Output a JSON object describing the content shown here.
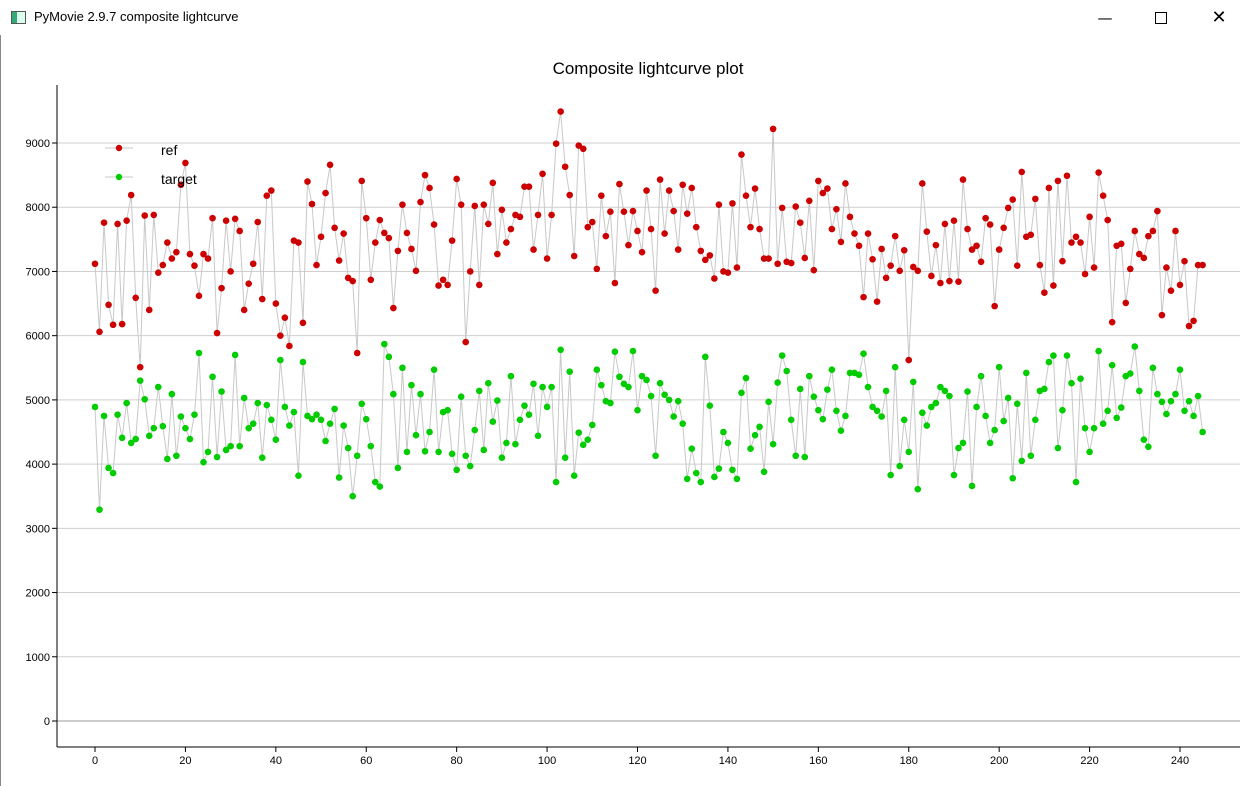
{
  "window": {
    "title": "PyMovie 2.9.7 composite lightcurve",
    "minimize_icon": "minimize-icon",
    "maximize_icon": "maximize-icon",
    "close_icon": "close-icon"
  },
  "chart_data": {
    "type": "line",
    "title": "Composite lightcurve plot",
    "xlabel": "",
    "ylabel": "",
    "xlim": [
      -8,
      252
    ],
    "ylim": [
      -380,
      9850
    ],
    "xticks": [
      0,
      20,
      40,
      60,
      80,
      100,
      120,
      140,
      160,
      180,
      200,
      220,
      240
    ],
    "yticks": [
      0,
      1000,
      2000,
      3000,
      4000,
      5000,
      6000,
      7000,
      8000,
      9000
    ],
    "grid": "horizontal",
    "legend": "top-left",
    "connector_color": "#c8c8c8",
    "series": [
      {
        "name": "ref",
        "color": "#cc0000",
        "values": [
          7120,
          6060,
          7760,
          6480,
          6170,
          7740,
          6180,
          7790,
          8190,
          6590,
          5510,
          7870,
          6400,
          7880,
          6980,
          7100,
          7450,
          7200,
          7300,
          8350,
          8690,
          7270,
          7090,
          6620,
          7270,
          7200,
          7830,
          6040,
          6740,
          7790,
          7000,
          7820,
          7630,
          6400,
          6810,
          7120,
          7770,
          6570,
          8180,
          8260,
          6500,
          6000,
          6280,
          5840,
          7480,
          7450,
          6200,
          8400,
          8050,
          7100,
          7540,
          8220,
          8660,
          7680,
          7170,
          7590,
          6900,
          6850,
          5730,
          8410,
          7830,
          6870,
          7450,
          7800,
          7600,
          7520,
          6430,
          7320,
          8040,
          7600,
          7350,
          7010,
          8080,
          8500,
          8300,
          7730,
          6780,
          6870,
          6790,
          7480,
          8440,
          8040,
          5900,
          7000,
          8020,
          6790,
          8040,
          7740,
          8380,
          7270,
          7960,
          7450,
          7660,
          7880,
          7850,
          8320,
          8320,
          7340,
          7880,
          8520,
          7200,
          7880,
          8990,
          9490,
          8630,
          8190,
          7240,
          8960,
          8910,
          7690,
          7770,
          7040,
          8180,
          7550,
          7930,
          6820,
          8360,
          7930,
          7410,
          7940,
          7630,
          7300,
          8260,
          7660,
          6700,
          8430,
          7590,
          8260,
          7940,
          7340,
          8350,
          7900,
          8300,
          7690,
          7320,
          7180,
          7250,
          6890,
          8040,
          7000,
          6980,
          8060,
          7060,
          8820,
          8180,
          7690,
          8290,
          7660,
          7200,
          7200,
          9220,
          7120,
          7990,
          7150,
          7130,
          8010,
          7760,
          7210,
          8100,
          7020,
          8410,
          8220,
          8290,
          7660,
          7970,
          7460,
          8370,
          7850,
          7590,
          7400,
          6600,
          7590,
          7190,
          6530,
          7350,
          6900,
          7090,
          7550,
          7010,
          7330,
          5620,
          7070,
          7010,
          8370,
          7620,
          6930,
          7410,
          6820,
          7740,
          6850,
          7790,
          6840,
          8430,
          7660,
          7340,
          7400,
          7150,
          7830,
          7730,
          6460,
          7340,
          7680,
          7990,
          8120,
          7090,
          8550,
          7540,
          7570,
          8130,
          7100,
          6670,
          8300,
          6780,
          8410,
          7160,
          8490,
          7450,
          7540,
          7450,
          6960,
          7850,
          7060,
          8540,
          8180,
          7800,
          6210,
          7400,
          7430,
          6510,
          7040,
          7630,
          7270,
          7210,
          7550,
          7630,
          7940,
          6320,
          7060,
          6700,
          7630,
          6790,
          7160,
          6150,
          6230,
          7100,
          7100
        ]
      },
      {
        "name": "target",
        "color": "#00cc00",
        "values": [
          4890,
          3290,
          4750,
          3940,
          3860,
          4770,
          4410,
          4950,
          4330,
          4390,
          5300,
          5010,
          4440,
          4560,
          5200,
          4590,
          4080,
          5090,
          4130,
          4740,
          4560,
          4390,
          4770,
          5730,
          4030,
          4190,
          5360,
          4110,
          5130,
          4220,
          4280,
          5700,
          4280,
          5030,
          4560,
          4630,
          4950,
          4100,
          4920,
          4690,
          4380,
          5620,
          4890,
          4600,
          4810,
          3820,
          5590,
          4750,
          4700,
          4770,
          4690,
          4360,
          4630,
          4860,
          3790,
          4600,
          4250,
          3500,
          4130,
          4940,
          4700,
          4280,
          3720,
          3650,
          5870,
          5670,
          5090,
          3940,
          5500,
          4190,
          5230,
          4450,
          5090,
          4200,
          4500,
          5470,
          4190,
          4810,
          4840,
          4160,
          3910,
          5050,
          4130,
          3970,
          4530,
          5140,
          4220,
          5260,
          4660,
          4990,
          4100,
          4330,
          5370,
          4310,
          4690,
          4910,
          4770,
          5250,
          4440,
          5200,
          4890,
          5200,
          3720,
          5780,
          4100,
          5440,
          3820,
          4490,
          4300,
          4380,
          4610,
          5470,
          5230,
          4980,
          4950,
          5750,
          5360,
          5250,
          5200,
          5760,
          4840,
          5370,
          5310,
          5060,
          4130,
          5260,
          5080,
          5000,
          4740,
          4980,
          4630,
          3770,
          4240,
          3860,
          3720,
          5670,
          4910,
          3800,
          3930,
          4500,
          4330,
          3910,
          3770,
          5110,
          5340,
          4240,
          4450,
          4580,
          3880,
          4970,
          4310,
          5270,
          5690,
          5450,
          4690,
          4130,
          5170,
          4110,
          5370,
          5050,
          4840,
          4700,
          5160,
          5470,
          4830,
          4520,
          4750,
          5420,
          5420,
          5390,
          5720,
          5200,
          4890,
          4830,
          4740,
          5140,
          3830,
          5510,
          3970,
          4690,
          4190,
          5280,
          3610,
          4800,
          4600,
          4890,
          4950,
          5200,
          5140,
          5060,
          3830,
          4250,
          4330,
          5130,
          3660,
          4890,
          5370,
          4750,
          4330,
          4530,
          5510,
          4670,
          5030,
          3780,
          4940,
          4050,
          5420,
          4130,
          4690,
          5140,
          5170,
          5590,
          5690,
          4250,
          4840,
          5690,
          5260,
          3720,
          5330,
          4560,
          4190,
          4560,
          5760,
          4630,
          4830,
          5540,
          4720,
          4880,
          5370,
          5410,
          5830,
          5140,
          4380,
          4270,
          5500,
          5090,
          4970,
          4780,
          4980,
          5090,
          5470,
          4830,
          4980,
          4750,
          5060,
          4500
        ]
      }
    ]
  }
}
